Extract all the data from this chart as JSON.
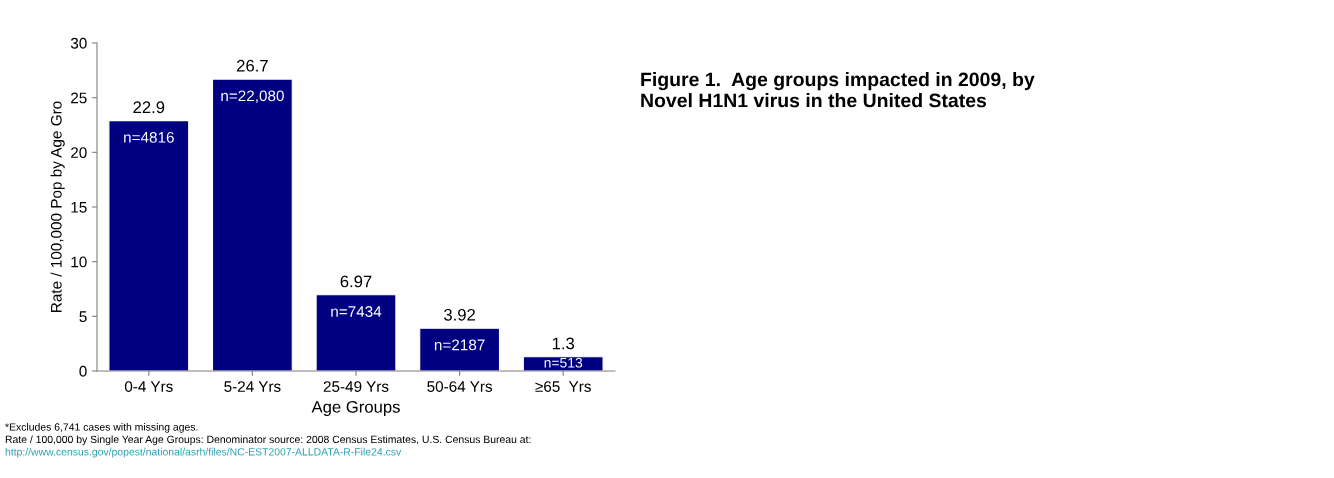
{
  "chart_data": {
    "type": "bar",
    "title": "Figure 1.  Age groups impacted in 2009, by\nNovel H1N1 virus in the United States",
    "xlabel": "Age Groups",
    "ylabel": "Rate / 100,000 Pop by Age Gro",
    "categories": [
      "0-4 Yrs",
      "5-24 Yrs",
      "25-49 Yrs",
      "50-64 Yrs",
      "≥65  Yrs"
    ],
    "values": [
      22.9,
      26.7,
      6.97,
      3.92,
      1.3
    ],
    "value_labels": [
      "22.9",
      "26.7",
      "6.97",
      "3.92",
      "1.3"
    ],
    "color": "#000080",
    "ylim": [
      0,
      30
    ],
    "yticks": [
      0,
      5,
      10,
      15,
      20,
      25,
      30
    ],
    "grid": false,
    "annotations": [
      "n=4816",
      "n=22,080",
      "n=7434",
      "n=2187",
      "n=513",
      "*Excludes 6,741 cases with missing ages.",
      "Rate / 100,000 by Single Year Age Groups: Denominator source: 2008 Census Estimates, U.S. Census Bureau at:",
      "http://www.census.gov/popest/national/asrh/files/NC-EST2007-ALLDATA-R-File24.csv"
    ]
  }
}
